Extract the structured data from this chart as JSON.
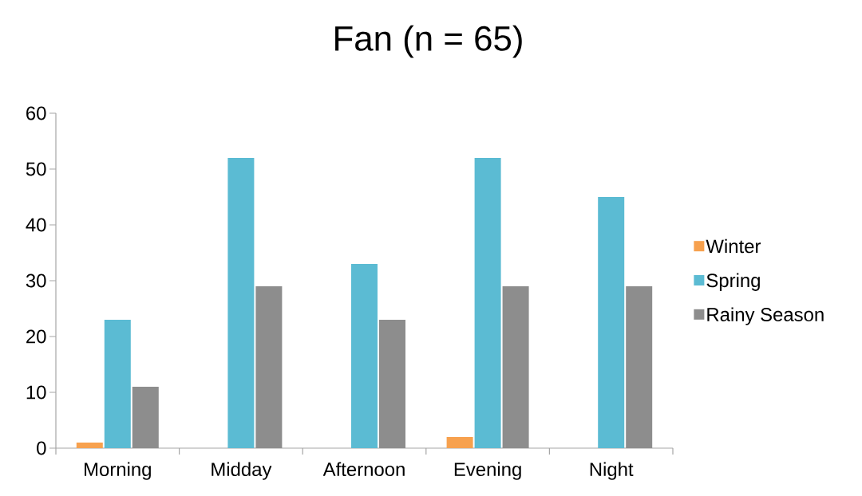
{
  "chart_data": {
    "type": "bar",
    "title": "Fan (n = 65)",
    "categories": [
      "Morning",
      "Midday",
      "Afternoon",
      "Evening",
      "Night"
    ],
    "series": [
      {
        "name": "Winter",
        "color": "#f7a14e",
        "values": [
          1,
          0,
          0,
          2,
          0
        ]
      },
      {
        "name": "Spring",
        "color": "#5bbbd3",
        "values": [
          23,
          52,
          33,
          52,
          45
        ]
      },
      {
        "name": "Rainy Season",
        "color": "#8d8d8d",
        "values": [
          11,
          29,
          23,
          29,
          29
        ]
      }
    ],
    "ylim": [
      0,
      60
    ],
    "yticks": [
      0,
      10,
      20,
      30,
      40,
      50,
      60
    ],
    "grid": false,
    "legend": "right"
  }
}
